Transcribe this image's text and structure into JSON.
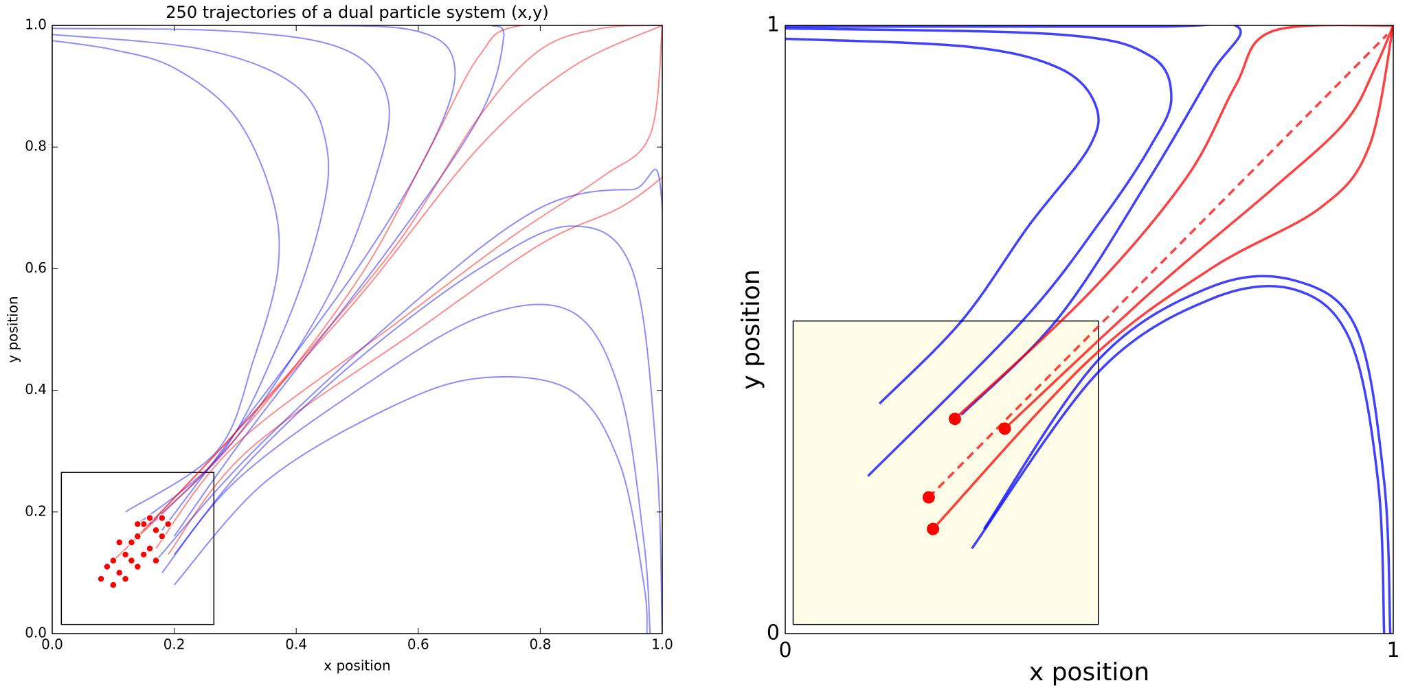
{
  "chart_data": [
    {
      "type": "line",
      "title": "250 trajectories of a dual particle system (x,y)",
      "x_label": "x position",
      "y_label": "y position",
      "xlim": [
        0,
        1
      ],
      "ylim": [
        0,
        1
      ],
      "xticks": [
        {
          "value": 0,
          "label": "0.0"
        },
        0.2,
        0.4,
        0.6,
        0.8,
        {
          "value": 1,
          "label": "1.0"
        }
      ],
      "yticks": [
        {
          "value": 0,
          "label": "0.0"
        },
        0.2,
        0.4,
        0.6,
        0.8,
        {
          "value": 1,
          "label": "1.0"
        }
      ],
      "line_opacity": 0.45,
      "inset_box": [
        0.015,
        0.265,
        0.015,
        0.265
      ],
      "inset_fill": "none",
      "series": [
        {
          "color": "#0000ff",
          "x": [
            0.12,
            0.27,
            0.33,
            0.37,
            0.36,
            0.3,
            0.2,
            0.1,
            0
          ],
          "values": [
            0.2,
            0.3,
            0.45,
            0.6,
            0.72,
            0.85,
            0.93,
            0.96,
            0.975
          ]
        },
        {
          "color": "#0000ff",
          "x": [
            0.14,
            0.28,
            0.38,
            0.44,
            0.45,
            0.4,
            0.25,
            0
          ],
          "values": [
            0.18,
            0.3,
            0.5,
            0.68,
            0.8,
            0.9,
            0.96,
            0.985
          ]
        },
        {
          "color": "#0000ff",
          "x": [
            0.16,
            0.3,
            0.45,
            0.53,
            0.55,
            0.48,
            0.3,
            0
          ],
          "values": [
            0.18,
            0.32,
            0.55,
            0.75,
            0.88,
            0.96,
            0.99,
            0.995
          ]
        },
        {
          "color": "#0000ff",
          "x": [
            0.18,
            0.3,
            0.5,
            0.62,
            0.66,
            0.6,
            0.4,
            0
          ],
          "values": [
            0.17,
            0.33,
            0.6,
            0.8,
            0.93,
            0.99,
            1.0,
            1.0
          ]
        },
        {
          "color": "#0000ff",
          "x": [
            0.2,
            0.32,
            0.55,
            0.7,
            0.74,
            0.72
          ],
          "values": [
            0.16,
            0.33,
            0.63,
            0.85,
            0.98,
            1.0
          ]
        },
        {
          "color": "#ff0000",
          "x": [
            0.15,
            0.3,
            0.5,
            0.7,
            0.85,
            1
          ],
          "values": [
            0.17,
            0.33,
            0.55,
            0.8,
            0.93,
            1
          ]
        },
        {
          "color": "#ff0000",
          "x": [
            0.13,
            0.3,
            0.55,
            0.7,
            0.8,
            0.9,
            1
          ],
          "values": [
            0.15,
            0.33,
            0.62,
            0.85,
            0.96,
            0.995,
            1
          ]
        },
        {
          "color": "#ff0000",
          "x": [
            0.17,
            0.3,
            0.55,
            0.75,
            0.9,
            0.98,
            1
          ],
          "values": [
            0.14,
            0.31,
            0.5,
            0.65,
            0.75,
            0.82,
            1
          ]
        },
        {
          "color": "#ff0000",
          "x": [
            0.1,
            0.3,
            0.5,
            0.62,
            0.7,
            0.77,
            1
          ],
          "values": [
            0.12,
            0.32,
            0.58,
            0.8,
            0.95,
            1.0,
            1
          ]
        },
        {
          "color": "#ff0000",
          "x": [
            0.19,
            0.32,
            0.6,
            0.8,
            0.93,
            1
          ],
          "values": [
            0.13,
            0.3,
            0.5,
            0.64,
            0.7,
            0.75
          ]
        },
        {
          "color": "#0000ff",
          "x": [
            0.2,
            0.32,
            0.5,
            0.7,
            0.85,
            0.95,
            0.99,
            1
          ],
          "values": [
            0.13,
            0.28,
            0.45,
            0.6,
            0.67,
            0.6,
            0.3,
            0
          ]
        },
        {
          "color": "#0000ff",
          "x": [
            0.18,
            0.3,
            0.5,
            0.7,
            0.85,
            0.93,
            0.97,
            0.98
          ],
          "values": [
            0.1,
            0.25,
            0.4,
            0.52,
            0.53,
            0.4,
            0.15,
            0
          ]
        },
        {
          "color": "#0000ff",
          "x": [
            0.2,
            0.35,
            0.55,
            0.7,
            0.85,
            0.93,
            0.97,
            0.975
          ],
          "values": [
            0.08,
            0.25,
            0.37,
            0.42,
            0.4,
            0.28,
            0.08,
            0
          ]
        },
        {
          "color": "#0000ff",
          "x": [
            0.17,
            0.33,
            0.6,
            0.8,
            0.95,
            1,
            1
          ],
          "values": [
            0.12,
            0.3,
            0.55,
            0.7,
            0.73,
            0.7,
            0
          ]
        }
      ],
      "points": {
        "color": "#ff0000",
        "x": [
          0.08,
          0.09,
          0.1,
          0.11,
          0.12,
          0.13,
          0.14,
          0.15,
          0.16,
          0.17,
          0.18,
          0.19,
          0.12,
          0.14,
          0.16,
          0.18,
          0.1,
          0.13,
          0.15,
          0.17,
          0.11,
          0.14
        ],
        "y": [
          0.09,
          0.11,
          0.12,
          0.1,
          0.13,
          0.15,
          0.16,
          0.18,
          0.19,
          0.17,
          0.19,
          0.18,
          0.09,
          0.11,
          0.14,
          0.16,
          0.08,
          0.12,
          0.13,
          0.12,
          0.15,
          0.18
        ]
      }
    },
    {
      "type": "line",
      "x_label": "x position",
      "y_label": "y position",
      "xlim": [
        0,
        1
      ],
      "ylim": [
        0,
        1
      ],
      "xticks": [
        0,
        1
      ],
      "yticks": [
        0,
        1
      ],
      "line_opacity": 0.75,
      "inset_box": [
        0.013,
        0.515,
        0.015,
        0.514
      ],
      "inset_fill": "#fffde8",
      "series": [
        {
          "color": "#0000ff",
          "x": [
            0.155,
            0.29,
            0.4,
            0.5,
            0.51,
            0.45,
            0.3,
            0
          ],
          "values": [
            0.378,
            0.514,
            0.67,
            0.8,
            0.87,
            0.93,
            0.965,
            0.978
          ]
        },
        {
          "color": "#0000ff",
          "x": [
            0.136,
            0.39,
            0.52,
            0.6,
            0.635,
            0.6,
            0.45,
            0
          ],
          "values": [
            0.259,
            0.514,
            0.68,
            0.8,
            0.88,
            0.95,
            0.985,
            0.995
          ]
        },
        {
          "color": "#0000ff",
          "x": [
            0.29,
            0.45,
            0.6,
            0.7,
            0.745,
            0.6,
            0
          ],
          "values": [
            0.36,
            0.52,
            0.75,
            0.92,
            0.997,
            0.998,
            0.998
          ]
        },
        {
          "color": "#ff0000",
          "x": [
            0.279,
            0.5,
            0.66,
            0.74,
            0.8,
            1
          ],
          "values": [
            0.353,
            0.56,
            0.75,
            0.9,
            0.99,
            1
          ]
        },
        {
          "color": "#ff0000",
          "dash": true,
          "x": [
            0.236,
            0.51,
            0.99
          ],
          "values": [
            0.224,
            0.5,
            0.985
          ]
        },
        {
          "color": "#ff0000",
          "x": [
            0.361,
            0.6,
            0.8,
            0.92,
            0.97,
            1
          ],
          "values": [
            0.337,
            0.56,
            0.73,
            0.84,
            0.93,
            1
          ]
        },
        {
          "color": "#ff0000",
          "x": [
            0.243,
            0.5,
            0.7,
            0.88,
            0.96,
            1
          ],
          "values": [
            0.172,
            0.45,
            0.6,
            0.7,
            0.8,
            1
          ]
        },
        {
          "color": "#0000ff",
          "x": [
            0.327,
            0.515,
            0.7,
            0.84,
            0.94,
            0.985,
            0.995
          ],
          "values": [
            0.172,
            0.45,
            0.57,
            0.58,
            0.5,
            0.25,
            0
          ]
        },
        {
          "color": "#0000ff",
          "x": [
            0.307,
            0.515,
            0.7,
            0.84,
            0.93,
            0.975,
            0.985
          ],
          "values": [
            0.14,
            0.43,
            0.55,
            0.565,
            0.48,
            0.25,
            0
          ]
        }
      ],
      "points": {
        "color": "#ff0000",
        "x": [
          0.279,
          0.361,
          0.236,
          0.243
        ],
        "y": [
          0.353,
          0.337,
          0.224,
          0.172
        ]
      }
    }
  ]
}
